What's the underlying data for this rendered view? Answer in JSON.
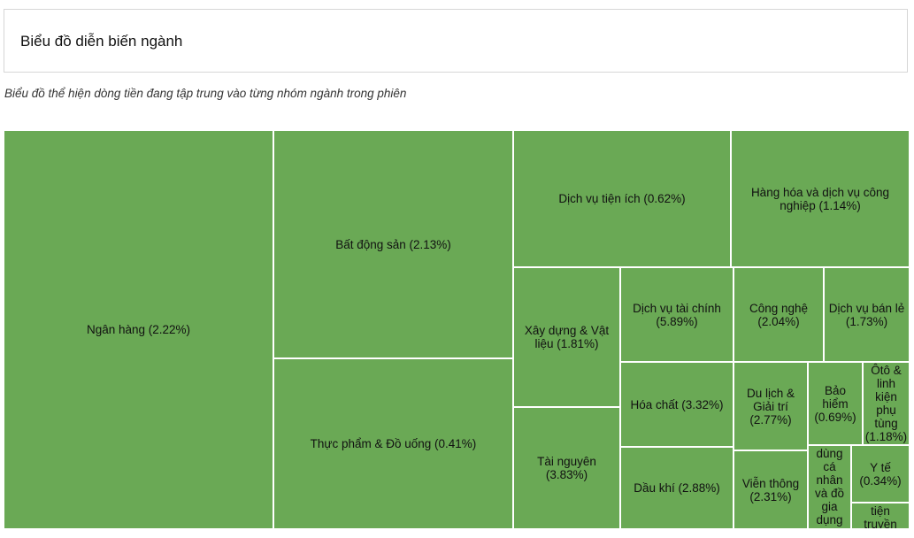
{
  "header": {
    "title": "Biểu đồ diễn biến ngành"
  },
  "subtitle": "Biểu đồ thể hiện dòng tiền đang tập trung vào từng nhóm ngành trong phiên",
  "colors": {
    "tile": "#6aa955",
    "border": "#ffffff"
  },
  "chart_data": {
    "type": "treemap",
    "title": "",
    "items": [
      {
        "name": "Ngân hàng",
        "pct": "2.22%",
        "label": "Ngân hàng (2.22%)"
      },
      {
        "name": "Bất động sản",
        "pct": "2.13%",
        "label": "Bất động sản (2.13%)"
      },
      {
        "name": "Thực phẩm & Đồ uống",
        "pct": "0.41%",
        "label": "Thực phẩm & Đồ uống (0.41%)"
      },
      {
        "name": "Dịch vụ tiện ích",
        "pct": "0.62%",
        "label": "Dịch vụ tiện ích (0.62%)"
      },
      {
        "name": "Hàng hóa và dịch vụ công nghiệp",
        "pct": "1.14%",
        "label": "Hàng hóa và dịch vụ công nghiệp (1.14%)"
      },
      {
        "name": "Xây dựng & Vật liệu",
        "pct": "1.81%",
        "label": "Xây dựng & Vật liệu (1.81%)"
      },
      {
        "name": "Tài nguyên",
        "pct": "3.83%",
        "label": "Tài nguyên (3.83%)"
      },
      {
        "name": "Dịch vụ tài chính",
        "pct": "5.89%",
        "label": "Dịch vụ tài chính (5.89%)"
      },
      {
        "name": "Hóa chất",
        "pct": "3.32%",
        "label": "Hóa chất (3.32%)"
      },
      {
        "name": "Dầu khí",
        "pct": "2.88%",
        "label": "Dầu khí (2.88%)"
      },
      {
        "name": "Công nghệ",
        "pct": "2.04%",
        "label": "Công nghệ (2.04%)"
      },
      {
        "name": "Dịch vụ bán lẻ",
        "pct": "1.73%",
        "label": "Dịch vụ bán lẻ (1.73%)"
      },
      {
        "name": "Du lịch & Giải trí",
        "pct": "2.77%",
        "label": "Du lịch & Giải trí (2.77%)"
      },
      {
        "name": "Bảo hiểm",
        "pct": "0.69%",
        "label": "Bảo hiểm (0.69%)"
      },
      {
        "name": "Ôtô & linh kiện phụ tùng",
        "pct": "1.18%",
        "label": "Ôtô & linh kiện phụ tùng (1.18%)"
      },
      {
        "name": "Viễn thông",
        "pct": "2.31%",
        "label": "Viễn thông (2.31%)"
      },
      {
        "name": "Hàng cá nhân và đồ gia dụng",
        "pct": "",
        "label": "dùng cá nhân và đồ gia dụng"
      },
      {
        "name": "Y tế",
        "pct": "0.34%",
        "label": "Y tế (0.34%)"
      },
      {
        "name": "Truyền thông",
        "pct": "",
        "label": "tiện truyền thông"
      }
    ]
  }
}
